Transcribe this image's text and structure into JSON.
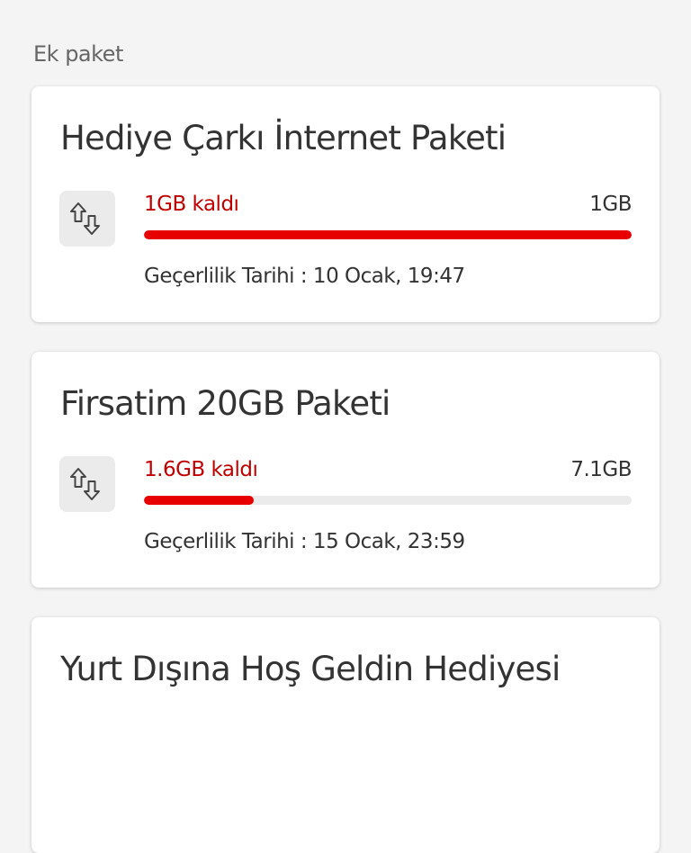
{
  "section_title": "Ek paket",
  "accent_color": "#e60000",
  "packages": [
    {
      "title": "Hediye Çarkı İnternet Paketi",
      "icon": "data-transfer-arrows-icon",
      "remaining": "1GB kaldı",
      "total": "1GB",
      "remaining_percent": 100,
      "validity": "Geçerlilik Tarihi : 10 Ocak, 19:47"
    },
    {
      "title": "Firsatim 20GB Paketi",
      "icon": "data-transfer-arrows-icon",
      "remaining": "1.6GB kaldı",
      "total": "7.1GB",
      "remaining_percent": 22.5,
      "validity": "Geçerlilik Tarihi : 15 Ocak, 23:59"
    },
    {
      "title": "Yurt Dışına Hoş Geldin Hediyesi"
    }
  ]
}
